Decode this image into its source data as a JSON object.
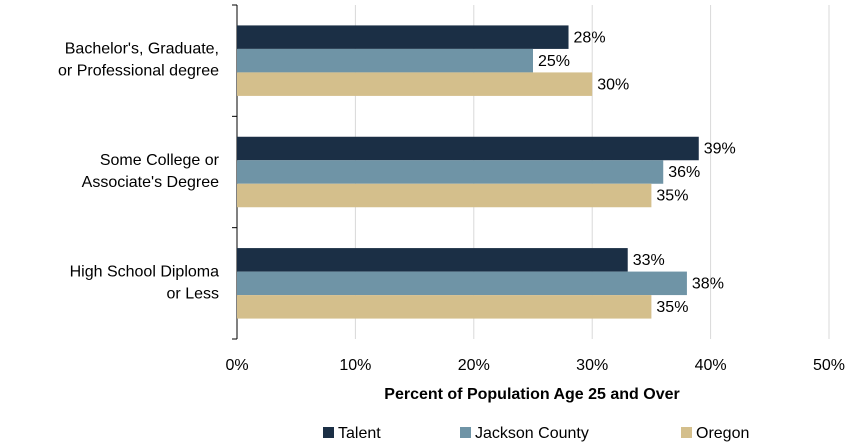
{
  "chart_data": {
    "type": "hbar",
    "categories": [
      "Bachelor's, Graduate,\nor Professional degree",
      "Some College or\nAssociate's Degree",
      "High School Diploma\nor Less"
    ],
    "series": [
      {
        "name": "Talent",
        "color": "#1b2f45",
        "values": [
          28,
          39,
          33
        ],
        "value_labels": [
          "28%",
          "39%",
          "33%"
        ]
      },
      {
        "name": "Jackson County",
        "color": "#6f94a6",
        "values": [
          25,
          36,
          38
        ],
        "value_labels": [
          "25%",
          "36%",
          "38%"
        ]
      },
      {
        "name": "Oregon",
        "color": "#d4bf8c",
        "values": [
          30,
          35,
          35
        ],
        "value_labels": [
          "30%",
          "35%",
          "35%"
        ]
      }
    ],
    "xlim": [
      0,
      50
    ],
    "xticks": [
      {
        "value": 0,
        "label": "0%"
      },
      {
        "value": 10,
        "label": "10%"
      },
      {
        "value": 20,
        "label": "20%"
      },
      {
        "value": 30,
        "label": "30%"
      },
      {
        "value": 40,
        "label": "40%"
      },
      {
        "value": 50,
        "label": "50%"
      }
    ],
    "x_label": "Percent of Population Age 25 and Over",
    "grid": true,
    "legend": "bottom"
  }
}
